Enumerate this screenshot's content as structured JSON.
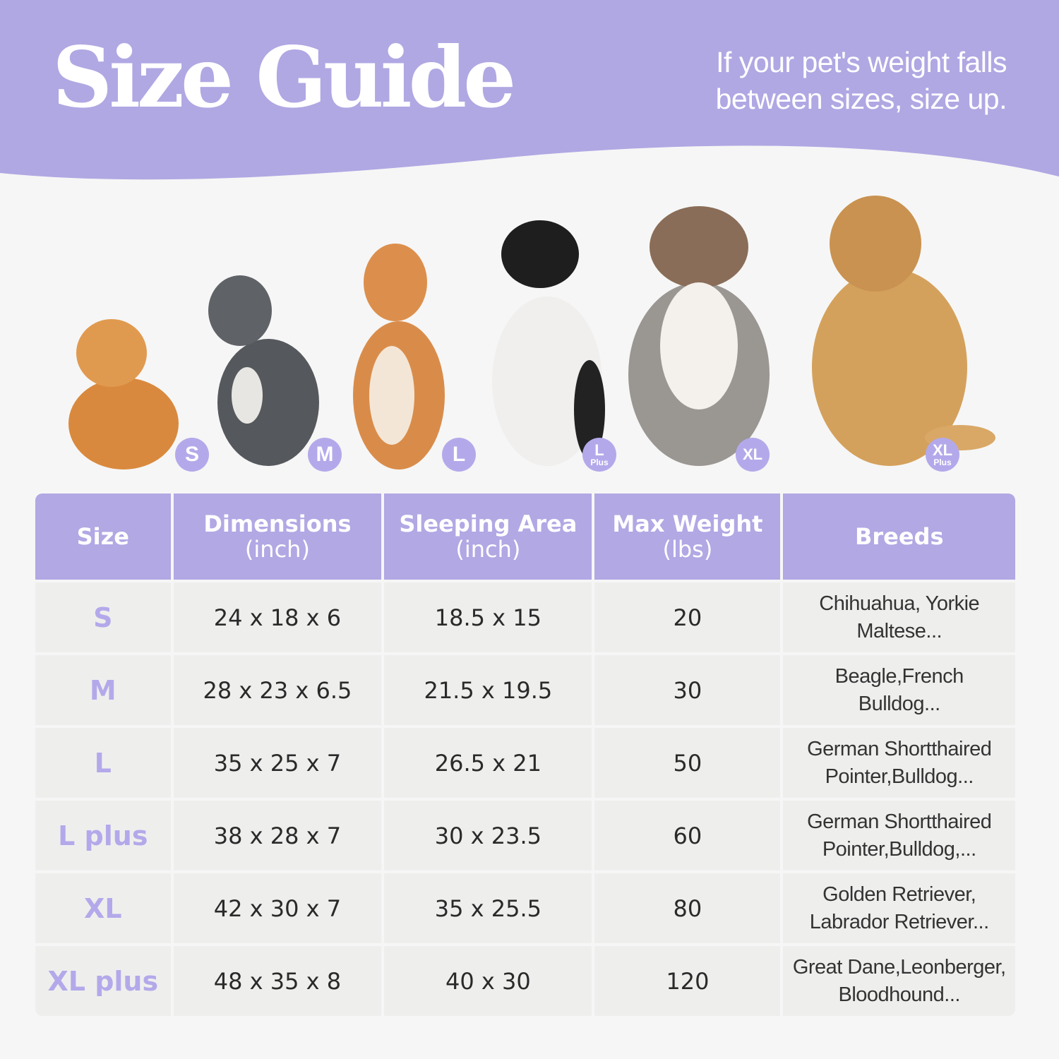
{
  "header": {
    "title": "Size Guide",
    "subtitle_line1": "If your pet's weight falls",
    "subtitle_line2": "between sizes, size up."
  },
  "colors": {
    "banner": "#b0a8e3",
    "accent": "#b3a9ea",
    "cell": "#eeefed",
    "background": "#f6f6f6"
  },
  "dogs": [
    {
      "badge": "S",
      "badge_sub": ""
    },
    {
      "badge": "M",
      "badge_sub": ""
    },
    {
      "badge": "L",
      "badge_sub": ""
    },
    {
      "badge": "L",
      "badge_sub": "Plus"
    },
    {
      "badge": "XL",
      "badge_sub": ""
    },
    {
      "badge": "XL",
      "badge_sub": "Plus"
    }
  ],
  "table": {
    "headers": [
      {
        "label": "Size",
        "unit": ""
      },
      {
        "label": "Dimensions",
        "unit": "(inch)"
      },
      {
        "label": "Sleeping Area",
        "unit": "(inch)"
      },
      {
        "label": "Max Weight",
        "unit": "(lbs)"
      },
      {
        "label": "Breeds",
        "unit": ""
      }
    ],
    "rows": [
      {
        "size": "S",
        "dimensions": "24 x 18 x 6",
        "sleeping_area": "18.5 x 15",
        "max_weight": "20",
        "breeds_1": "Chihuahua, Yorkie",
        "breeds_2": "Maltese..."
      },
      {
        "size": "M",
        "dimensions": "28 x 23 x 6.5",
        "sleeping_area": "21.5 x 19.5",
        "max_weight": "30",
        "breeds_1": "Beagle,French",
        "breeds_2": "Bulldog..."
      },
      {
        "size": "L",
        "dimensions": "35 x 25 x 7",
        "sleeping_area": "26.5 x 21",
        "max_weight": "50",
        "breeds_1": "German Shortthaired",
        "breeds_2": "Pointer,Bulldog..."
      },
      {
        "size": "L plus",
        "dimensions": "38 x 28 x 7",
        "sleeping_area": "30 x 23.5",
        "max_weight": "60",
        "breeds_1": "German Shortthaired",
        "breeds_2": "Pointer,Bulldog,..."
      },
      {
        "size": "XL",
        "dimensions": "42 x 30 x 7",
        "sleeping_area": "35 x 25.5",
        "max_weight": "80",
        "breeds_1": "Golden Retriever,",
        "breeds_2": "Labrador Retriever..."
      },
      {
        "size": "XL plus",
        "dimensions": "48 x 35 x 8",
        "sleeping_area": "40 x 30",
        "max_weight": "120",
        "breeds_1": "Great Dane,Leonberger,",
        "breeds_2": "Bloodhound..."
      }
    ]
  }
}
